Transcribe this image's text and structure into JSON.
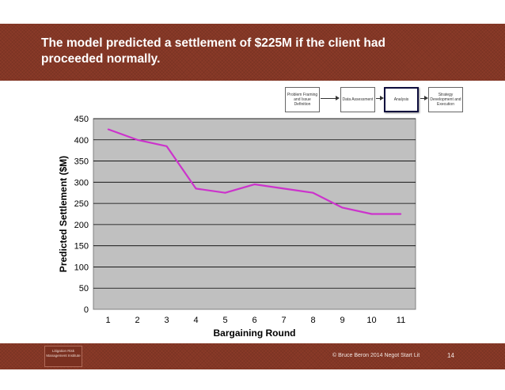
{
  "slide": {
    "title": "The model predicted a settlement of $225M if the client had proceeded normally.",
    "flow_steps": [
      {
        "label": "Problem Framing and Issue Definition",
        "active": false
      },
      {
        "label": "Data Assessment",
        "active": false
      },
      {
        "label": "Analysis",
        "active": true
      },
      {
        "label": "Strategy Development and Execution",
        "active": false
      }
    ],
    "footer": {
      "logo_text": "Litigation Risk Management Institute",
      "copyright": "© Bruce Beron 2014  Negot Start Lit",
      "page_number": "14"
    }
  },
  "colors": {
    "header": "#8a3a28",
    "plot_bg": "#c0c0c0",
    "line": "#cc33cc"
  },
  "chart_data": {
    "type": "line",
    "title": "",
    "xlabel": "Bargaining Round",
    "ylabel": "Predicted Settlement ($M)",
    "categories": [
      "1",
      "2",
      "3",
      "4",
      "5",
      "6",
      "7",
      "8",
      "9",
      "10",
      "11"
    ],
    "series": [
      {
        "name": "Predicted Settlement",
        "values": [
          425,
          400,
          385,
          285,
          275,
          295,
          285,
          275,
          240,
          225,
          225
        ]
      }
    ],
    "ylim": [
      0,
      450
    ],
    "yticks": [
      "0",
      "50",
      "100",
      "150",
      "200",
      "250",
      "300",
      "350",
      "400",
      "450"
    ],
    "grid": true
  }
}
